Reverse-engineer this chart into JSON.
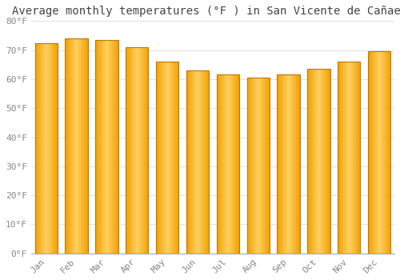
{
  "title": "Average monthly temperatures (°F ) in San Vicente de Cañaete",
  "months": [
    "Jan",
    "Feb",
    "Mar",
    "Apr",
    "May",
    "Jun",
    "Jul",
    "Aug",
    "Sep",
    "Oct",
    "Nov",
    "Dec"
  ],
  "values": [
    72.5,
    74.0,
    73.5,
    71.0,
    66.0,
    63.0,
    61.5,
    60.5,
    61.5,
    63.5,
    66.0,
    69.5
  ],
  "bar_color_center": "#FFD060",
  "bar_color_edge": "#F0A000",
  "bar_border_color": "#C07800",
  "background_color": "#FFFFFF",
  "grid_color": "#E0E0E0",
  "ylim": [
    0,
    80
  ],
  "yticks": [
    0,
    10,
    20,
    30,
    40,
    50,
    60,
    70,
    80
  ],
  "ytick_labels": [
    "0°F",
    "10°F",
    "20°F",
    "30°F",
    "40°F",
    "50°F",
    "60°F",
    "70°F",
    "80°F"
  ],
  "title_fontsize": 10,
  "tick_fontsize": 8,
  "bar_width": 0.75,
  "tick_color": "#888888",
  "title_color": "#444444"
}
